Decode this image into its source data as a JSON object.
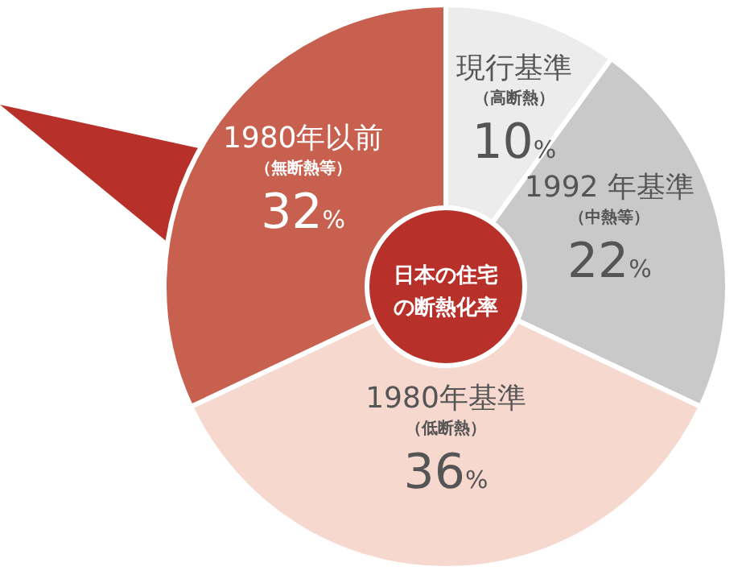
{
  "chart_data": {
    "type": "donut",
    "title": "日本の住宅の断熱化率",
    "categories": [
      "現行基準（高断熱）",
      "1992 年基準（中熱等）",
      "1980年基準（低断熱）",
      "1980年以前（無断熱等）"
    ],
    "values": [
      10,
      22,
      36,
      32
    ],
    "colors": [
      "#ececec",
      "#c9c9c9",
      "#f6d8cf",
      "#c7604f"
    ],
    "value_labels": [
      "10%",
      "22%",
      "36%",
      "32%"
    ],
    "legend": false
  }
}
